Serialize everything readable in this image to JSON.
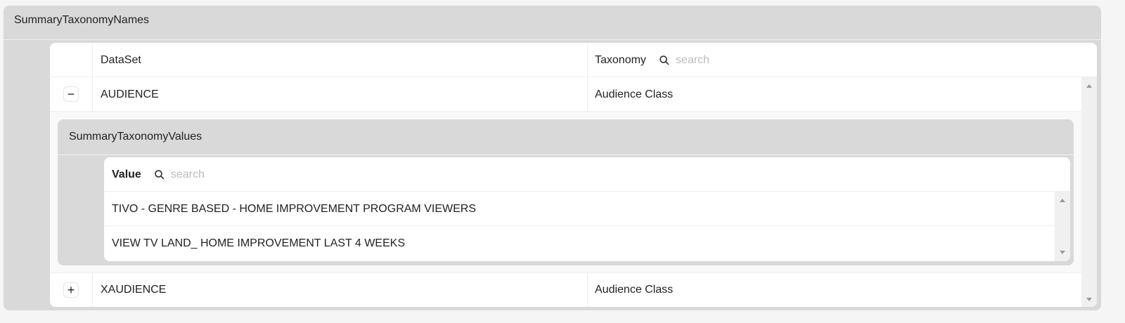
{
  "outer": {
    "title": "SummaryTaxonomyNames"
  },
  "grid": {
    "columns": {
      "dataset": "DataSet",
      "taxonomy": "Taxonomy"
    },
    "search_placeholder": "search",
    "rows": [
      {
        "dataset": "AUDIENCE",
        "taxonomy": "Audience Class",
        "expand": "−"
      },
      {
        "dataset": "XAUDIENCE",
        "taxonomy": "Audience Class",
        "expand": "+"
      }
    ]
  },
  "detail": {
    "title": "SummaryTaxonomyValues",
    "column": "Value",
    "search_placeholder": "search",
    "rows": [
      "TIVO - GENRE BASED - HOME IMPROVEMENT PROGRAM VIEWERS",
      "VIEW TV LAND_ HOME IMPROVEMENT LAST 4 WEEKS"
    ]
  }
}
